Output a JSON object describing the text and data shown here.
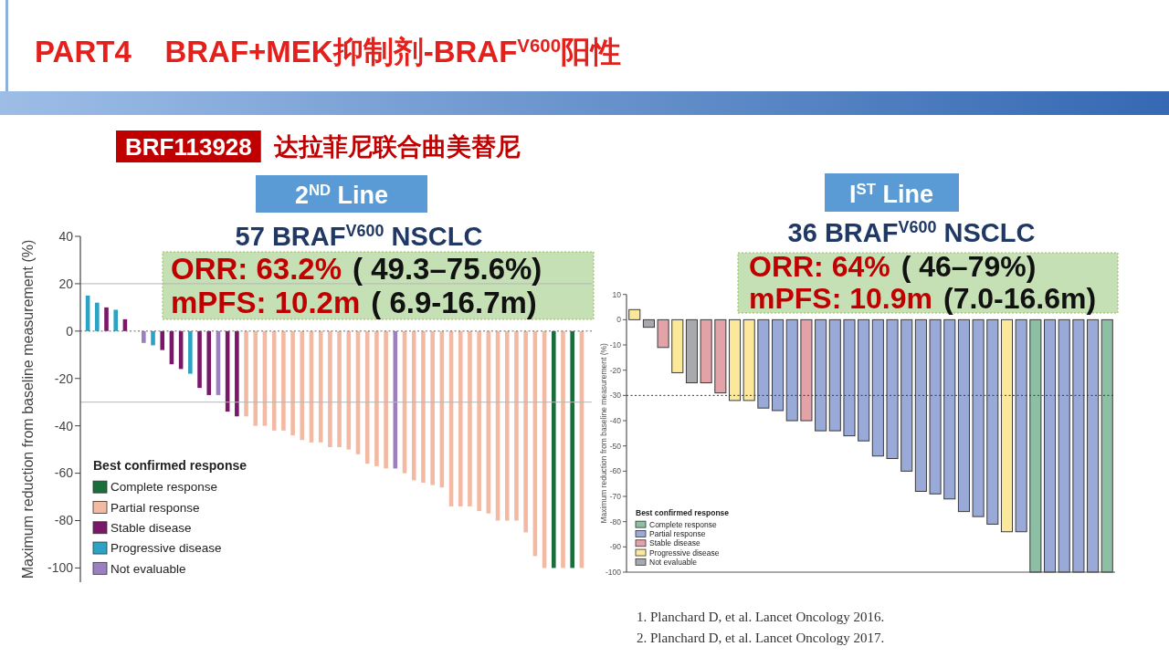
{
  "chart_data": [
    {
      "type": "bar",
      "title": "PART4    BRAF+MEK抑制剂-BRAF$^{V600}$阳性",
      "subtitle": "BRF113928 达拉菲尼联合曲美替尼",
      "ylabel": "Maximum reduction from baseline measurement (%)",
      "legend_title": "Best confirmed response",
      "annotations": [
        "2$^{ND}$ Line",
        "57 BRAF$^{V600}$ NSCLC",
        "ORR: 63.2%",
        "( 49.3–75.6%)",
        "mPFS: 10.2m",
        "( 6.9-16.7m)"
      ],
      "categories": [
        null,
        null,
        null,
        null,
        null,
        null,
        null,
        null,
        null,
        null,
        null,
        null,
        null,
        null,
        null,
        null,
        null,
        null,
        null,
        null,
        null,
        null,
        null,
        null,
        null,
        null,
        null,
        null,
        null,
        null,
        null,
        null,
        null,
        null,
        null,
        null,
        null,
        null,
        null,
        null,
        null,
        null,
        null,
        null,
        null,
        null,
        null,
        null,
        null,
        null,
        null,
        null,
        null,
        null
      ],
      "series": [
        {
          "name": "Complete response",
          "color": "#1a6e3c",
          "values": [
            null,
            null,
            null,
            null,
            null,
            null,
            null,
            null,
            null,
            null,
            null,
            null,
            null,
            null,
            null,
            null,
            null,
            null,
            null,
            null,
            null,
            null,
            null,
            null,
            null,
            null,
            null,
            null,
            null,
            null,
            null,
            null,
            null,
            null,
            null,
            null,
            null,
            null,
            null,
            null,
            null,
            null,
            null,
            null,
            null,
            null,
            null,
            null,
            null,
            null,
            -100,
            null,
            -100,
            null
          ]
        },
        {
          "name": "Partial response",
          "color": "#f3b9a2",
          "values": [
            null,
            null,
            null,
            null,
            null,
            null,
            null,
            null,
            null,
            null,
            null,
            null,
            null,
            null,
            null,
            null,
            null,
            -36,
            -40,
            -40,
            -42,
            -42,
            -44,
            -46,
            -47,
            -47,
            -49,
            -49,
            -50,
            -52,
            -56,
            -57,
            -58,
            null,
            -60,
            -63,
            -64,
            -65,
            -66,
            -74,
            -74,
            -74,
            -76,
            -77,
            -80,
            -80,
            -80,
            -85,
            -95,
            -100,
            null,
            -100,
            null,
            -100
          ]
        },
        {
          "name": "Stable disease",
          "color": "#7b1768",
          "values": [
            null,
            null,
            10,
            null,
            5,
            null,
            null,
            null,
            -8,
            -14,
            -16,
            null,
            -24,
            -27,
            null,
            -34,
            -36,
            null,
            null,
            null,
            null,
            null,
            null,
            null,
            null,
            null,
            null,
            null,
            null,
            null,
            null,
            null,
            null,
            null,
            null,
            null,
            null,
            null,
            null,
            null,
            null,
            null,
            null,
            null,
            null,
            null,
            null,
            null,
            null,
            null,
            null,
            null,
            null,
            null
          ]
        },
        {
          "name": "Progressive disease",
          "color": "#2aa3c5",
          "values": [
            15,
            12,
            null,
            9,
            null,
            null,
            null,
            -6,
            null,
            null,
            null,
            -18,
            null,
            null,
            null,
            null,
            null,
            null,
            null,
            null,
            null,
            null,
            null,
            null,
            null,
            null,
            null,
            null,
            null,
            null,
            null,
            null,
            null,
            null,
            null,
            null,
            null,
            null,
            null,
            null,
            null,
            null,
            null,
            null,
            null,
            null,
            null,
            null,
            null,
            null,
            null,
            null,
            null,
            null
          ]
        },
        {
          "name": "Not evaluable",
          "color": "#9b7fc0",
          "values": [
            null,
            null,
            null,
            null,
            null,
            null,
            -5,
            null,
            null,
            null,
            null,
            null,
            null,
            null,
            -27,
            null,
            null,
            null,
            null,
            null,
            null,
            null,
            null,
            null,
            null,
            null,
            null,
            null,
            null,
            null,
            null,
            null,
            null,
            -58,
            null,
            null,
            null,
            null,
            null,
            null,
            null,
            null,
            null,
            null,
            null,
            null,
            null,
            null,
            null,
            null,
            null,
            null,
            null,
            null
          ]
        }
      ],
      "stacked": true,
      "ylim": [
        -106,
        40
      ],
      "yticks": [
        -100,
        -80,
        -60,
        -40,
        -20,
        0,
        20,
        40
      ],
      "ref_lines": [
        {
          "axis": "y",
          "value": 20,
          "color": "#b5b5b5"
        },
        {
          "axis": "y",
          "value": -30,
          "color": "#b5b5b5"
        },
        {
          "axis": "y",
          "value": 0,
          "color": "#666666",
          "line_style": "dotted"
        }
      ],
      "legend": "bottom left",
      "tick_labels": "y"
    },
    {
      "type": "bar",
      "ylabel": "Maximum reduction from baseline measurement (%)",
      "legend_title": "Best confirmed response",
      "annotations": [
        "I$^{ST}$ Line",
        "36 BRAF$^{V600}$ NSCLC",
        "ORR: 64%",
        "( 46–79%)",
        "mPFS: 10.9m",
        "(7.0-16.6m)",
        "1. Planchard D, et al. Lancet Oncology 2016.",
        "2. Planchard D, et al. Lancet Oncology 2017."
      ],
      "categories": [
        null,
        null,
        null,
        null,
        null,
        null,
        null,
        null,
        null,
        null,
        null,
        null,
        null,
        null,
        null,
        null,
        null,
        null,
        null,
        null,
        null,
        null,
        null,
        null,
        null,
        null,
        null,
        null,
        null,
        null,
        null,
        null,
        null,
        null
      ],
      "series": [
        {
          "name": "Complete response",
          "color": "#8dbfa5",
          "values": [
            null,
            null,
            null,
            null,
            null,
            null,
            null,
            null,
            null,
            null,
            null,
            null,
            null,
            null,
            null,
            null,
            null,
            null,
            null,
            null,
            null,
            null,
            null,
            null,
            null,
            null,
            null,
            null,
            -100,
            null,
            null,
            null,
            null,
            -100
          ]
        },
        {
          "name": "Partial response",
          "color": "#9aaad8",
          "values": [
            null,
            null,
            null,
            null,
            null,
            null,
            null,
            null,
            null,
            -35,
            -36,
            -40,
            null,
            -44,
            -44,
            -46,
            -48,
            -54,
            -55,
            -60,
            -68,
            -69,
            -71,
            -76,
            -78,
            -81,
            null,
            -84,
            null,
            -100,
            -100,
            -100,
            -100,
            null
          ]
        },
        {
          "name": "Stable disease",
          "color": "#e3a1a8",
          "values": [
            null,
            null,
            -11,
            null,
            null,
            -25,
            -29,
            null,
            null,
            null,
            null,
            null,
            -40,
            null,
            null,
            null,
            null,
            null,
            null,
            null,
            null,
            null,
            null,
            null,
            null,
            null,
            null,
            null,
            null,
            null,
            null,
            null,
            null,
            null
          ]
        },
        {
          "name": "Progressive disease",
          "color": "#fce89a",
          "values": [
            4,
            null,
            null,
            -21,
            null,
            null,
            null,
            -32,
            -32,
            null,
            null,
            null,
            null,
            null,
            null,
            null,
            null,
            null,
            null,
            null,
            null,
            null,
            null,
            null,
            null,
            null,
            -84,
            null,
            null,
            null,
            null,
            null,
            null,
            null
          ]
        },
        {
          "name": "Not evaluable",
          "color": "#a7a9ac",
          "values": [
            null,
            -3,
            null,
            null,
            -25,
            null,
            null,
            null,
            null,
            null,
            null,
            null,
            null,
            null,
            null,
            null,
            null,
            null,
            null,
            null,
            null,
            null,
            null,
            null,
            null,
            null,
            null,
            null,
            null,
            null,
            null,
            null,
            null,
            null
          ]
        }
      ],
      "stacked": true,
      "ylim": [
        -100,
        10
      ],
      "yticks": [
        -100,
        -90,
        -80,
        -70,
        -60,
        -50,
        -40,
        -30,
        -20,
        -10,
        0,
        10
      ],
      "ref_lines": [
        {
          "axis": "y",
          "value": -30,
          "color": "#333355",
          "line_style": "dotted"
        }
      ],
      "legend": "bottom left",
      "tick_labels": "y"
    }
  ]
}
